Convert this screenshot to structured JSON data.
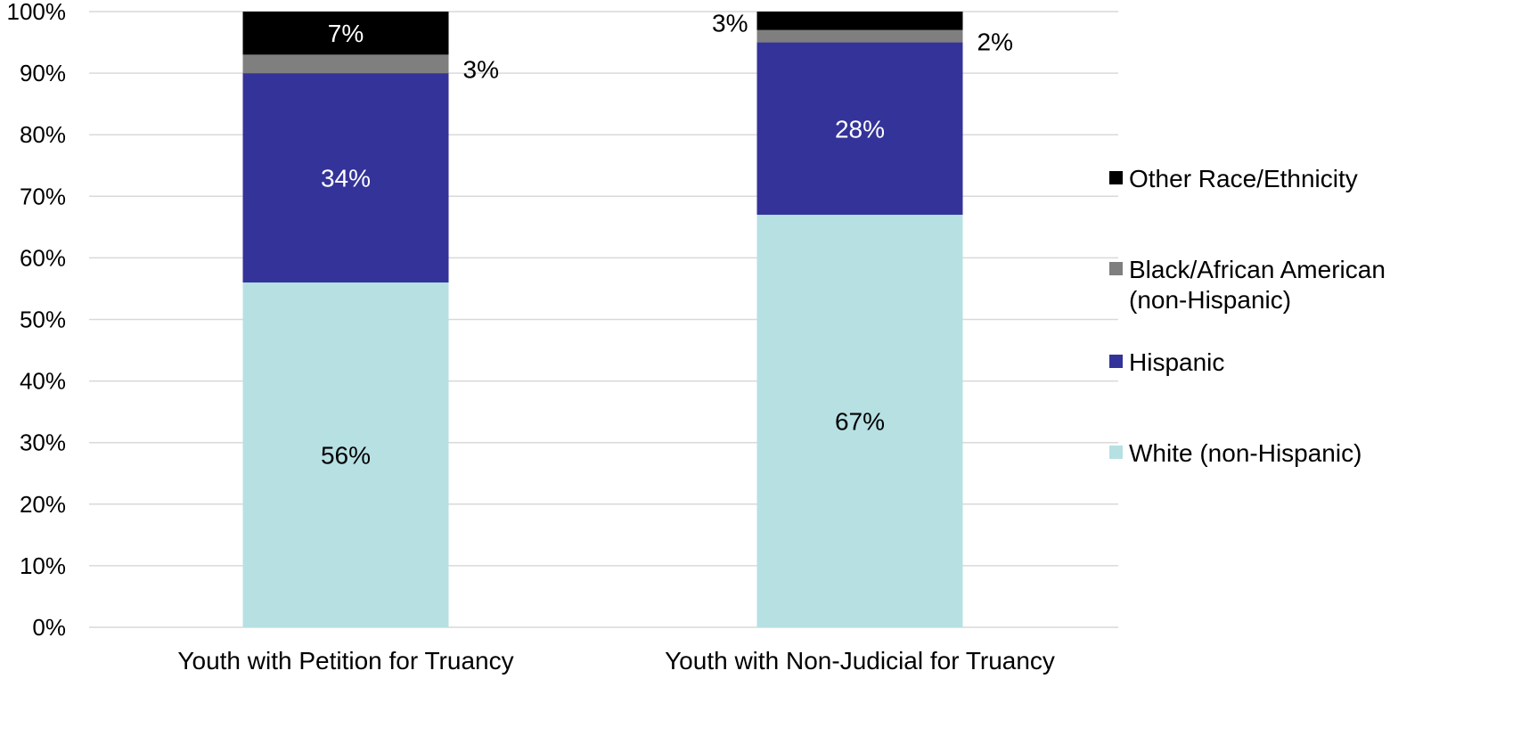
{
  "chart_data": {
    "type": "bar",
    "stacked": true,
    "categories": [
      "Youth with Petition for Truancy",
      "Youth with Non-Judicial for Truancy"
    ],
    "series": [
      {
        "name": "White (non-Hispanic)",
        "values": [
          56,
          67
        ],
        "color": "#b7e0e3",
        "label_color": "#000000"
      },
      {
        "name": "Hispanic",
        "values": [
          34,
          28
        ],
        "color": "#343399",
        "label_color": "#ffffff"
      },
      {
        "name": "Black/African American (non-Hispanic)",
        "values": [
          3,
          2
        ],
        "color": "#7f7f7f",
        "label_color": "#000000"
      },
      {
        "name": "Other Race/Ethnicity",
        "values": [
          7,
          3
        ],
        "color": "#000000",
        "label_color": "#ffffff"
      }
    ],
    "data_labels": [
      [
        "56%",
        "34%",
        "3%",
        "7%"
      ],
      [
        "67%",
        "28%",
        "2%",
        "3%"
      ]
    ],
    "y_ticks": [
      "0%",
      "10%",
      "20%",
      "30%",
      "40%",
      "50%",
      "60%",
      "70%",
      "80%",
      "90%",
      "100%"
    ],
    "ylim": [
      0,
      100
    ],
    "grid": true,
    "legend_position": "right",
    "legend_order": [
      "Other Race/Ethnicity",
      "Black/African American (non-Hispanic)",
      "Hispanic",
      "White (non-Hispanic)"
    ],
    "legend_lines": {
      "Other Race/Ethnicity": [
        "Other Race/Ethnicity"
      ],
      "Black/African American (non-Hispanic)": [
        "Black/African American",
        "(non-Hispanic)"
      ],
      "Hispanic": [
        "Hispanic"
      ],
      "White (non-Hispanic)": [
        "White (non-Hispanic)"
      ]
    },
    "title": "",
    "xlabel": "",
    "ylabel": ""
  }
}
